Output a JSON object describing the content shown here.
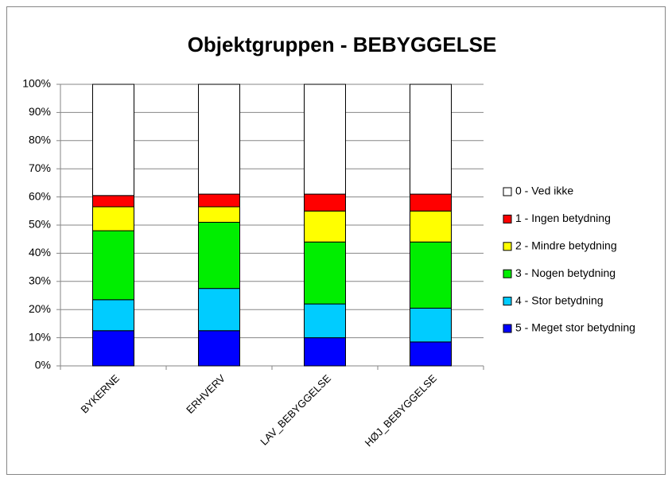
{
  "chart_data": {
    "type": "stacked_bar",
    "title": "Objektgruppen - BEBYGGELSE",
    "categories": [
      "BYKERNE",
      "ERHVERV",
      "LAV_BEBYGGELSE",
      "HØJ_BEBYGGELSE"
    ],
    "series": [
      {
        "name": "5 - Meget stor betydning",
        "color": "#0000ff",
        "values": [
          12.5,
          12.5,
          10,
          8.5
        ]
      },
      {
        "name": "4 - Stor betydning",
        "color": "#00ccff",
        "values": [
          11,
          15,
          12,
          12
        ]
      },
      {
        "name": "3 - Nogen betydning",
        "color": "#00ee00",
        "values": [
          24.5,
          23.5,
          22,
          23.5
        ]
      },
      {
        "name": "2 - Mindre betydning",
        "color": "#ffff00",
        "values": [
          8.5,
          5.5,
          11,
          11
        ]
      },
      {
        "name": "1 - Ingen betydning",
        "color": "#ff0000",
        "values": [
          4,
          4.5,
          6,
          6
        ]
      },
      {
        "name": "0 - Ved ikke",
        "color": "#ffffff",
        "values": [
          39.5,
          39,
          39,
          39
        ]
      }
    ],
    "ylim": [
      0,
      100
    ],
    "yticks": [
      {
        "value": 0,
        "label": "0%"
      },
      {
        "value": 10,
        "label": "10%"
      },
      {
        "value": 20,
        "label": "20%"
      },
      {
        "value": 30,
        "label": "30%"
      },
      {
        "value": 40,
        "label": "40%"
      },
      {
        "value": 50,
        "label": "50%"
      },
      {
        "value": 60,
        "label": "60%"
      },
      {
        "value": 70,
        "label": "70%"
      },
      {
        "value": 80,
        "label": "80%"
      },
      {
        "value": 90,
        "label": "90%"
      },
      {
        "value": 100,
        "label": "100%"
      }
    ],
    "grid": true,
    "legend": "right"
  }
}
